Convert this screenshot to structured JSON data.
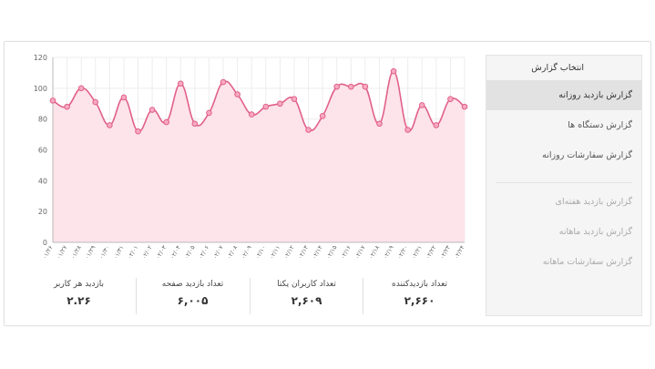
{
  "sidebar": {
    "title": "انتخاب گزارش",
    "items": [
      {
        "label": "گزارش بازدید روزانه",
        "active": true,
        "disabled": false,
        "name": "sidebar-item-daily-visits"
      },
      {
        "label": "گزارش دستگاه ها",
        "active": false,
        "disabled": false,
        "name": "sidebar-item-devices"
      },
      {
        "label": "گزارش سفارشات روزانه",
        "active": false,
        "disabled": false,
        "name": "sidebar-item-daily-orders"
      }
    ],
    "disabled_items": [
      {
        "label": "گزارش بازدید هفته‌ای",
        "name": "sidebar-item-weekly-visits"
      },
      {
        "label": "گزارش بازدید ماهانه",
        "name": "sidebar-item-monthly-visits"
      },
      {
        "label": "گزارش سفارشات ماهانه",
        "name": "sidebar-item-monthly-orders"
      }
    ]
  },
  "stats": [
    {
      "label": "تعداد بازدیدکننده",
      "value": "۲,۶۶۰"
    },
    {
      "label": "تعداد کاربران یکتا",
      "value": "۲,۶۰۹"
    },
    {
      "label": "تعداد بازدید صفحه",
      "value": "۶,۰۰۵"
    },
    {
      "label": "بازدید هر کاربر",
      "value": "۲.۲۶"
    }
  ],
  "chart_data": {
    "type": "area",
    "x": [
      "۰۱/۲۶",
      "۰۱/۲۷",
      "۰۱/۲۸",
      "۰۱/۲۹",
      "۰۱/۳۰",
      "۰۱/۳۱",
      "۰۲/۰۱",
      "۰۲/۰۲",
      "۰۲/۰۳",
      "۰۲/۰۴",
      "۰۲/۰۵",
      "۰۲/۰۶",
      "۰۲/۰۷",
      "۰۲/۰۸",
      "۰۲/۰۹",
      "۰۲/۱۰",
      "۰۲/۱۱",
      "۰۲/۱۲",
      "۰۲/۱۳",
      "۰۲/۱۴",
      "۰۲/۱۵",
      "۰۲/۱۶",
      "۰۲/۱۷",
      "۰۲/۱۸",
      "۰۲/۱۹",
      "۰۲/۲۰",
      "۰۲/۲۱",
      "۰۲/۲۲",
      "۰۲/۲۳",
      "۰۲/۲۴"
    ],
    "series": [
      {
        "values": [
          92,
          88,
          100,
          91,
          76,
          94,
          72,
          86,
          78,
          103,
          77,
          84,
          104,
          96,
          83,
          88,
          90,
          93,
          73,
          82,
          101,
          101,
          101,
          77,
          111,
          73,
          89,
          76,
          93,
          88
        ]
      }
    ],
    "ylim": [
      0,
      120
    ],
    "yticks": [
      "0",
      "20",
      "40",
      "60",
      "80",
      "100",
      "120"
    ],
    "grid": true,
    "line_color": "#e0608a",
    "fill_color": "#fde3ea",
    "grid_color": "#ededed"
  }
}
